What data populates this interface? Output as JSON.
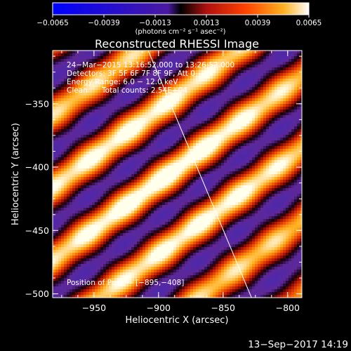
{
  "chart_data": {
    "type": "heatmap",
    "title": "Reconstructed RHESSI Image",
    "xlabel": "Heliocentric X (arcsec)",
    "ylabel": "Heliocentric Y (arcsec)",
    "xlim": [
      -982,
      -789
    ],
    "ylim": [
      -503,
      -308
    ],
    "x_ticks": [
      -950,
      -900,
      -850,
      -800
    ],
    "y_ticks": [
      -350,
      -400,
      -450,
      -500
    ],
    "x_tick_labels": [
      "−950",
      "−900",
      "−850",
      "−800"
    ],
    "y_tick_labels": [
      "−350",
      "−400",
      "−450",
      "−500"
    ],
    "colorbar": {
      "range": [
        -0.0065,
        0.0065
      ],
      "ticks": [
        -0.0065,
        -0.0039,
        -0.0013,
        0.0013,
        0.0039,
        0.0065
      ],
      "tick_labels": [
        "−0.0065",
        "−0.0039",
        "−0.0013",
        "0.0013",
        "0.0039",
        "0.0065"
      ],
      "unit_label": "(photons cm⁻² s⁻¹ asec⁻²)"
    },
    "annotations": {
      "time_range": "24−Mar−2015 13:16:52.000 to 13:26:52.000",
      "detectors": "Detectors: 3F 5F 6F 7F 8F 9F, Att 0",
      "energy": "Energy Range: 6.0 − 12.0 keV",
      "clean": "Clean",
      "counts": "Total counts: 2.54E+04",
      "peak": "Position of Peak = [−895,−408]"
    },
    "peak_position": [
      -895,
      -408
    ],
    "limb_line": [
      [
        -908,
        -308
      ],
      [
        -828,
        -503
      ]
    ],
    "grid": false
  },
  "footer": {
    "timestamp": "13−Sep−2017 14:19"
  }
}
